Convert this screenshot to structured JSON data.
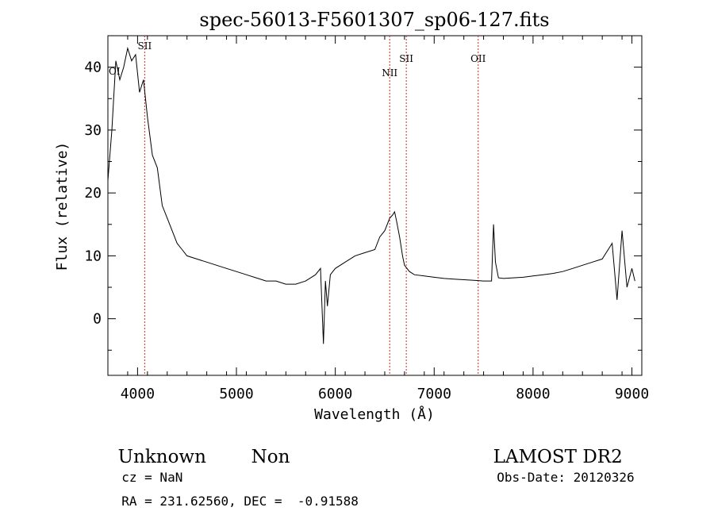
{
  "chart_data": {
    "type": "line",
    "title": "spec-56013-F5601307_sp06-127.fits",
    "xlabel": "Wavelength (Å)",
    "ylabel": "Flux (relative)",
    "xlim": [
      3700,
      9100
    ],
    "ylim": [
      -9,
      45
    ],
    "xticks": [
      4000,
      5000,
      6000,
      7000,
      8000,
      9000
    ],
    "yticks": [
      0,
      10,
      20,
      30,
      40
    ],
    "grid": false,
    "series": [
      {
        "color": "#000000",
        "x": [
          3700,
          3740,
          3780,
          3820,
          3860,
          3900,
          3940,
          3980,
          4020,
          4060,
          4100,
          4150,
          4200,
          4250,
          4300,
          4350,
          4400,
          4450,
          4500,
          4600,
          4700,
          4800,
          4900,
          5000,
          5100,
          5200,
          5300,
          5400,
          5500,
          5600,
          5700,
          5800,
          5850,
          5880,
          5900,
          5920,
          5950,
          6000,
          6100,
          6200,
          6300,
          6400,
          6450,
          6500,
          6550,
          6580,
          6600,
          6620,
          6650,
          6680,
          6700,
          6750,
          6800,
          6900,
          7000,
          7100,
          7200,
          7300,
          7400,
          7500,
          7580,
          7600,
          7620,
          7650,
          7700,
          7800,
          7900,
          8000,
          8100,
          8200,
          8300,
          8400,
          8500,
          8600,
          8700,
          8800,
          8850,
          8900,
          8950,
          9000,
          9030
        ],
        "y": [
          22,
          30,
          41,
          38,
          40,
          43,
          41,
          42,
          36,
          38,
          32,
          26,
          24,
          18,
          16,
          14,
          12,
          11,
          10,
          9.5,
          9,
          8.5,
          8,
          7.5,
          7,
          6.5,
          6,
          6,
          5.5,
          5.5,
          6,
          7,
          8,
          -4,
          6,
          2,
          7,
          8,
          9,
          10,
          10.5,
          11,
          13,
          14,
          16,
          16.5,
          17,
          15.5,
          13,
          10,
          8.5,
          7.5,
          7,
          6.8,
          6.6,
          6.4,
          6.3,
          6.2,
          6.1,
          6,
          6,
          15,
          9,
          6.5,
          6.4,
          6.5,
          6.6,
          6.8,
          7,
          7.2,
          7.5,
          8,
          8.5,
          9,
          9.5,
          12,
          3,
          14,
          5,
          8,
          6
        ]
      }
    ],
    "lines": [
      {
        "wavelength": 4072,
        "label": "SII"
      },
      {
        "wavelength": 6550,
        "label": "NII"
      },
      {
        "wavelength": 6718,
        "label": "SII"
      },
      {
        "wavelength": 7445,
        "label": "OII"
      }
    ],
    "corner_label": "OI"
  },
  "footer": {
    "line1_left_a": "Unknown",
    "line1_left_b": "Non",
    "line1_right": "LAMOST DR2",
    "line2_left": "cz = NaN",
    "line2_right": "Obs-Date: 20120326",
    "line3_left": "RA = 231.62560, DEC =  -0.91588"
  }
}
